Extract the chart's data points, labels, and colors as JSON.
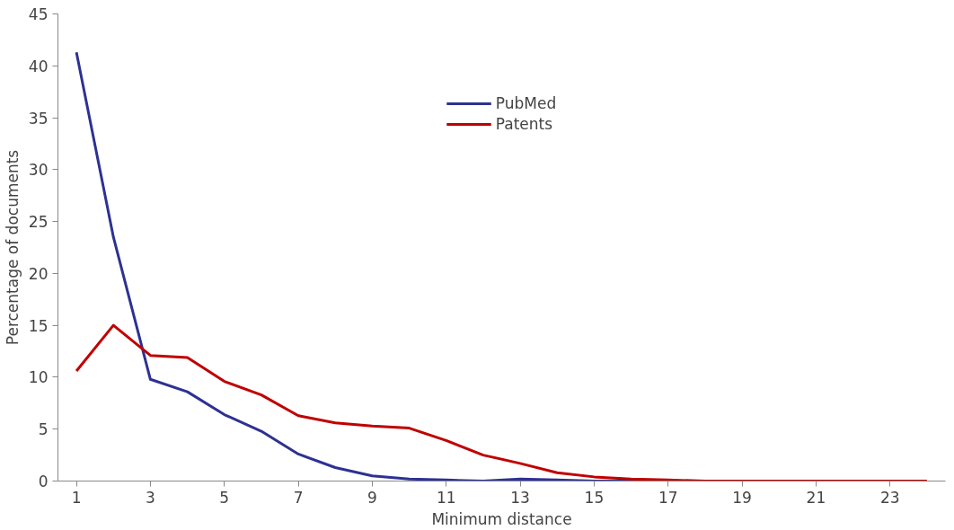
{
  "chart_data": {
    "type": "line",
    "xlabel": "Minimum distance",
    "ylabel": "Percentage of documents",
    "x": [
      1,
      2,
      3,
      4,
      5,
      6,
      7,
      8,
      9,
      10,
      11,
      12,
      13,
      14,
      15,
      16,
      17,
      18,
      19,
      20,
      21,
      22,
      23,
      24
    ],
    "series": [
      {
        "name": "PubMed",
        "color": "#2e3192",
        "values": [
          41.3,
          23.5,
          9.8,
          8.6,
          6.4,
          4.8,
          2.6,
          1.3,
          0.5,
          0.2,
          0.1,
          0,
          0.2,
          0.1,
          0,
          0,
          0,
          null,
          null,
          null,
          null,
          null,
          null,
          null
        ]
      },
      {
        "name": "Patents",
        "color": "#c00000",
        "values": [
          10.6,
          15.0,
          12.1,
          11.9,
          9.6,
          8.3,
          6.3,
          5.6,
          5.3,
          5.1,
          3.9,
          2.5,
          1.7,
          0.8,
          0.4,
          0.2,
          0.1,
          0,
          0,
          0,
          0,
          0,
          0,
          0
        ]
      }
    ],
    "xlim": [
      0.5,
      24.5
    ],
    "xticks": [
      1,
      3,
      5,
      7,
      9,
      11,
      13,
      15,
      17,
      19,
      21,
      23
    ],
    "ylim": [
      0,
      45
    ],
    "yticks": [
      0,
      5,
      10,
      15,
      20,
      25,
      30,
      35,
      40,
      45
    ],
    "grid": false,
    "legend": "top",
    "marker": "none",
    "line_style": "solid"
  }
}
